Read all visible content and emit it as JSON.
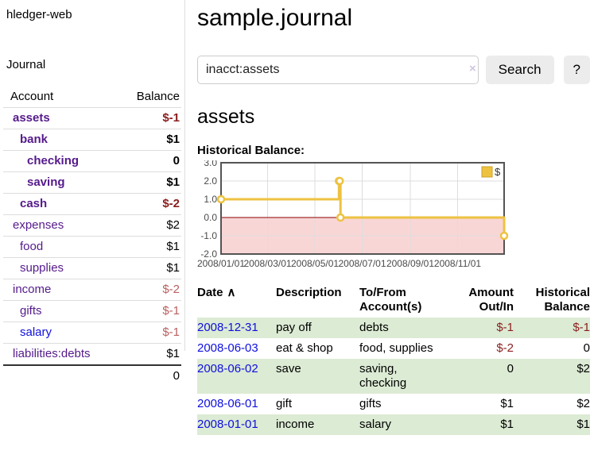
{
  "app": {
    "brand": "hledger-web",
    "nav_journal": "Journal"
  },
  "colors": {
    "link_visited": "#551A8B",
    "link_unvisited": "#0f0fdf",
    "negative_strong": "#8b1e1e",
    "negative_soft": "#b86060",
    "stripe_green": "#dcebd4",
    "series_gold": "#EDC240"
  },
  "sidebar": {
    "columns": {
      "account": "Account",
      "balance": "Balance"
    },
    "rows": [
      {
        "account": "assets",
        "balance": "$-1",
        "level": 1,
        "bold": true,
        "balance_style": "neg-strong",
        "link": "visited"
      },
      {
        "account": "bank",
        "balance": "$1",
        "level": 2,
        "bold": true,
        "balance_style": "pos",
        "link": "visited"
      },
      {
        "account": "checking",
        "balance": "0",
        "level": 3,
        "bold": true,
        "balance_style": "pos",
        "link": "visited"
      },
      {
        "account": "saving",
        "balance": "$1",
        "level": 3,
        "bold": true,
        "balance_style": "pos",
        "link": "visited"
      },
      {
        "account": "cash",
        "balance": "$-2",
        "level": 2,
        "bold": true,
        "balance_style": "neg-strong",
        "link": "visited"
      },
      {
        "account": "expenses",
        "balance": "$2",
        "level": 1,
        "bold": false,
        "balance_style": "pos",
        "link": "visited"
      },
      {
        "account": "food",
        "balance": "$1",
        "level": 2,
        "bold": false,
        "balance_style": "pos",
        "link": "visited"
      },
      {
        "account": "supplies",
        "balance": "$1",
        "level": 2,
        "bold": false,
        "balance_style": "pos",
        "link": "visited"
      },
      {
        "account": "income",
        "balance": "$-2",
        "level": 1,
        "bold": false,
        "balance_style": "neg-soft",
        "link": "visited"
      },
      {
        "account": "gifts",
        "balance": "$-1",
        "level": 2,
        "bold": false,
        "balance_style": "neg-soft",
        "link": "visited"
      },
      {
        "account": "salary",
        "balance": "$-1",
        "level": 2,
        "bold": false,
        "balance_style": "neg-soft",
        "link": "unvisited"
      },
      {
        "account": "liabilities:debts",
        "balance": "$1",
        "level": 1,
        "bold": false,
        "balance_style": "pos",
        "link": "visited"
      }
    ],
    "total": "0"
  },
  "main": {
    "title": "sample.journal",
    "search": {
      "value": "inacct:assets",
      "clear_icon": "×",
      "button_label": "Search",
      "help_label": "?"
    },
    "account_heading": "assets",
    "chart_label": "Historical Balance:"
  },
  "chart_data": {
    "type": "line",
    "title": "Historical Balance:",
    "steps": true,
    "grid": true,
    "x_start": "2008-01-01",
    "x_end": "2008-12-31",
    "x_ticks": [
      "2008/01/01",
      "2008/03/01",
      "2008/05/01",
      "2008/07/01",
      "2008/09/01",
      "2008/11/01"
    ],
    "y_ticks": [
      3,
      2,
      1,
      0,
      -1,
      -2
    ],
    "ylim": [
      -2,
      3
    ],
    "series": [
      {
        "name": "$",
        "color": "#EDC240",
        "point_fill": "#ffffff",
        "points": [
          [
            "2008-01-01",
            1
          ],
          [
            "2008-06-01",
            2
          ],
          [
            "2008-06-02",
            2
          ],
          [
            "2008-06-03",
            0
          ],
          [
            "2008-12-31",
            -1
          ]
        ]
      }
    ],
    "legend": "$",
    "legend_position": "top-right",
    "negative_fill": "#f9d6d6",
    "zero_line_color": "#8b0000",
    "axis_color": "#4a4a4a",
    "border_color": "#545454",
    "grid_color": "#dddddd"
  },
  "register": {
    "headers": {
      "date": "Date",
      "sort_icon": "∧",
      "description": "Description",
      "accounts": "To/From Account(s)",
      "amount": "Amount Out/In",
      "balance": "Historical Balance"
    },
    "rows": [
      {
        "date": "2008-12-31",
        "description": "pay off",
        "accounts": "debts",
        "amount": "$-1",
        "balance": "$-1",
        "amount_negative": true,
        "balance_negative": true
      },
      {
        "date": "2008-06-03",
        "description": "eat & shop",
        "accounts": "food, supplies",
        "amount": "$-2",
        "balance": "0",
        "amount_negative": true,
        "balance_negative": false
      },
      {
        "date": "2008-06-02",
        "description": "save",
        "accounts": "saving, checking",
        "amount": "0",
        "balance": "$2",
        "amount_negative": false,
        "balance_negative": false
      },
      {
        "date": "2008-06-01",
        "description": "gift",
        "accounts": "gifts",
        "amount": "$1",
        "balance": "$2",
        "amount_negative": false,
        "balance_negative": false
      },
      {
        "date": "2008-01-01",
        "description": "income",
        "accounts": "salary",
        "amount": "$1",
        "balance": "$1",
        "amount_negative": false,
        "balance_negative": false
      }
    ]
  }
}
